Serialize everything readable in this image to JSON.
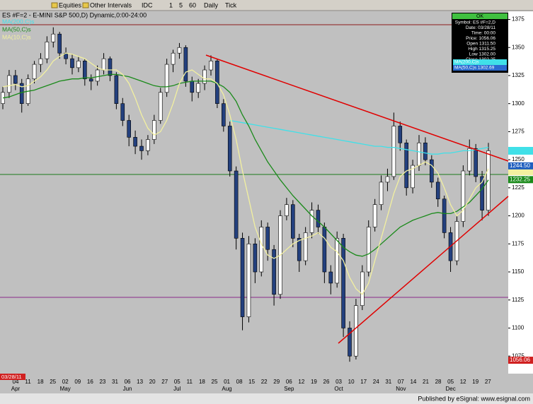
{
  "toolbar": {
    "items": [
      "Equities",
      "Other Intervals",
      "IDC",
      "1",
      "5",
      "60",
      "Daily",
      "Tick"
    ]
  },
  "status_bar": "Published by eSignal: www.esignal.com",
  "info_box": {
    "status": "OK",
    "rows": [
      "Symbol: ES #F=2,D",
      "Date: 03/28/11",
      "Time: 00:00",
      "Price: 1056.06",
      "Open 1311.50",
      "High 1315.25",
      "Low 1302.00",
      "Close 1302.25"
    ],
    "ma_rows": [
      "MA(200,C)s",
      "MA(50,C)s 1302.69"
    ]
  },
  "chart_data": {
    "type": "candlestick",
    "title": "ES #F=2 - E-MINI S&P 500,D) Dynamic,0:00-24:00",
    "ylim": [
      1060,
      1381
    ],
    "yticks": [
      1075,
      1100,
      1125,
      1150,
      1175,
      1200,
      1225,
      1250,
      1275,
      1300,
      1325,
      1350,
      1375
    ],
    "up_color": "#ffffff",
    "down_color": "#23407e",
    "week_labels": [
      "04",
      "11",
      "18",
      "25",
      "02",
      "09",
      "16",
      "23",
      "31",
      "06",
      "13",
      "20",
      "27",
      "05",
      "11",
      "18",
      "25",
      "01",
      "08",
      "15",
      "22",
      "29",
      "06",
      "12",
      "19",
      "26",
      "03",
      "10",
      "17",
      "24",
      "31",
      "07",
      "14",
      "21",
      "28",
      "05",
      "12",
      "19",
      "27"
    ],
    "month_labels": [
      "Apr",
      "May",
      "Jun",
      "Jul",
      "Aug",
      "Sep",
      "Oct",
      "Nov",
      "Dec"
    ],
    "start_date": "03/28/11",
    "price_labels": [
      {
        "value": 1244.5,
        "label": "1244.50",
        "color": "#1f5fbf"
      },
      {
        "value": 1232.25,
        "label": "1232.25",
        "color": "#1a8a1a"
      },
      {
        "value": 1056.06,
        "label": "1056.06",
        "color": "#d02020"
      }
    ],
    "candles": [
      [
        1300,
        1315,
        1295,
        1310
      ],
      [
        1310,
        1330,
        1305,
        1325
      ],
      [
        1325,
        1330,
        1312,
        1318
      ],
      [
        1318,
        1322,
        1292,
        1300
      ],
      [
        1300,
        1326,
        1298,
        1322
      ],
      [
        1322,
        1338,
        1318,
        1335
      ],
      [
        1335,
        1345,
        1328,
        1340
      ],
      [
        1340,
        1360,
        1336,
        1355
      ],
      [
        1355,
        1368,
        1350,
        1362
      ],
      [
        1362,
        1364,
        1340,
        1345
      ],
      [
        1345,
        1350,
        1335,
        1340
      ],
      [
        1340,
        1344,
        1326,
        1332
      ],
      [
        1332,
        1342,
        1328,
        1338
      ],
      [
        1338,
        1340,
        1316,
        1322
      ],
      [
        1322,
        1326,
        1312,
        1320
      ],
      [
        1320,
        1334,
        1316,
        1330
      ],
      [
        1330,
        1345,
        1326,
        1340
      ],
      [
        1340,
        1342,
        1320,
        1325
      ],
      [
        1325,
        1328,
        1295,
        1300
      ],
      [
        1300,
        1305,
        1280,
        1285
      ],
      [
        1285,
        1290,
        1262,
        1270
      ],
      [
        1270,
        1276,
        1255,
        1262
      ],
      [
        1262,
        1268,
        1250,
        1258
      ],
      [
        1258,
        1272,
        1254,
        1268
      ],
      [
        1268,
        1290,
        1264,
        1285
      ],
      [
        1285,
        1314,
        1282,
        1310
      ],
      [
        1310,
        1340,
        1306,
        1335
      ],
      [
        1335,
        1348,
        1328,
        1345
      ],
      [
        1345,
        1354,
        1340,
        1350
      ],
      [
        1350,
        1352,
        1315,
        1320
      ],
      [
        1320,
        1324,
        1302,
        1310
      ],
      [
        1310,
        1322,
        1305,
        1318
      ],
      [
        1318,
        1334,
        1312,
        1330
      ],
      [
        1330,
        1343,
        1325,
        1338
      ],
      [
        1338,
        1340,
        1296,
        1300
      ],
      [
        1300,
        1304,
        1275,
        1280
      ],
      [
        1280,
        1284,
        1235,
        1240
      ],
      [
        1240,
        1244,
        1170,
        1180
      ],
      [
        1180,
        1185,
        1098,
        1110
      ],
      [
        1110,
        1182,
        1105,
        1175
      ],
      [
        1175,
        1180,
        1140,
        1150
      ],
      [
        1150,
        1196,
        1146,
        1190
      ],
      [
        1190,
        1194,
        1160,
        1170
      ],
      [
        1170,
        1174,
        1120,
        1130
      ],
      [
        1130,
        1205,
        1126,
        1200
      ],
      [
        1200,
        1216,
        1196,
        1210
      ],
      [
        1210,
        1214,
        1172,
        1180
      ],
      [
        1180,
        1184,
        1150,
        1160
      ],
      [
        1160,
        1190,
        1156,
        1185
      ],
      [
        1185,
        1212,
        1180,
        1205
      ],
      [
        1205,
        1210,
        1184,
        1190
      ],
      [
        1190,
        1194,
        1140,
        1150
      ],
      [
        1150,
        1156,
        1130,
        1140
      ],
      [
        1140,
        1186,
        1136,
        1180
      ],
      [
        1180,
        1184,
        1092,
        1100
      ],
      [
        1100,
        1106,
        1070,
        1075
      ],
      [
        1075,
        1126,
        1072,
        1120
      ],
      [
        1120,
        1156,
        1116,
        1150
      ],
      [
        1150,
        1196,
        1146,
        1190
      ],
      [
        1190,
        1215,
        1186,
        1210
      ],
      [
        1210,
        1236,
        1205,
        1230
      ],
      [
        1230,
        1242,
        1222,
        1235
      ],
      [
        1235,
        1292,
        1232,
        1280
      ],
      [
        1280,
        1284,
        1258,
        1265
      ],
      [
        1265,
        1268,
        1218,
        1225
      ],
      [
        1225,
        1250,
        1220,
        1245
      ],
      [
        1245,
        1272,
        1240,
        1265
      ],
      [
        1265,
        1270,
        1245,
        1250
      ],
      [
        1250,
        1254,
        1225,
        1230
      ],
      [
        1230,
        1234,
        1208,
        1215
      ],
      [
        1215,
        1218,
        1180,
        1185
      ],
      [
        1185,
        1190,
        1150,
        1160
      ],
      [
        1160,
        1200,
        1156,
        1195
      ],
      [
        1195,
        1245,
        1190,
        1240
      ],
      [
        1240,
        1268,
        1236,
        1260
      ],
      [
        1260,
        1264,
        1230,
        1235
      ],
      [
        1235,
        1240,
        1196,
        1205
      ],
      [
        1205,
        1265,
        1200,
        1258
      ]
    ],
    "series": [
      {
        "name": "MA(200,C)s",
        "color": "#40e0e8",
        "values": [
          null,
          null,
          null,
          null,
          null,
          null,
          null,
          null,
          null,
          null,
          null,
          null,
          null,
          null,
          null,
          null,
          null,
          null,
          null,
          null,
          null,
          null,
          null,
          null,
          null,
          null,
          null,
          null,
          null,
          null,
          null,
          null,
          null,
          null,
          null,
          null,
          1285,
          1284,
          1283,
          1282,
          1281,
          1280,
          1279,
          1278,
          1277,
          1276,
          1275,
          1274,
          1273,
          1272,
          1271,
          1270,
          1269,
          1268,
          1267,
          1266,
          1265,
          1264,
          1263,
          1262,
          1262,
          1261,
          1261,
          1260,
          1259,
          1258,
          1257,
          1256,
          1255,
          1255,
          1256,
          1256,
          1257,
          1258,
          1258,
          1259,
          1260,
          1261
        ]
      },
      {
        "name": "MA(50,C)s",
        "color": "#1a8a1a",
        "values": [
          1305,
          1306,
          1308,
          1310,
          1311,
          1312,
          1314,
          1316,
          1318,
          1320,
          1321,
          1322,
          1322,
          1323,
          1323,
          1324,
          1325,
          1326,
          1326,
          1325,
          1324,
          1322,
          1320,
          1318,
          1316,
          1315,
          1315,
          1316,
          1318,
          1319,
          1320,
          1320,
          1320,
          1320,
          1318,
          1315,
          1310,
          1302,
          1290,
          1280,
          1268,
          1258,
          1248,
          1240,
          1232,
          1225,
          1218,
          1212,
          1206,
          1200,
          1195,
          1190,
          1184,
          1178,
          1172,
          1168,
          1165,
          1164,
          1166,
          1170,
          1175,
          1180,
          1185,
          1190,
          1193,
          1196,
          1198,
          1200,
          1202,
          1203,
          1202,
          1202,
          1204,
          1208,
          1212,
          1218,
          1224,
          1232
        ]
      },
      {
        "name": "MA(10,C)s",
        "color": "#f2f0a0",
        "values": [
          1315,
          1316,
          1317,
          1315,
          1316,
          1320,
          1324,
          1330,
          1338,
          1342,
          1345,
          1344,
          1342,
          1340,
          1336,
          1332,
          1330,
          1330,
          1330,
          1326,
          1318,
          1305,
          1290,
          1278,
          1272,
          1275,
          1285,
          1300,
          1318,
          1328,
          1330,
          1326,
          1322,
          1322,
          1318,
          1308,
          1290,
          1268,
          1240,
          1215,
          1190,
          1175,
          1165,
          1162,
          1165,
          1170,
          1175,
          1178,
          1180,
          1182,
          1185,
          1180,
          1172,
          1168,
          1160,
          1145,
          1135,
          1130,
          1140,
          1160,
          1180,
          1200,
          1220,
          1235,
          1240,
          1242,
          1245,
          1248,
          1245,
          1238,
          1225,
          1210,
          1200,
          1205,
          1215,
          1225,
          1230,
          1242
        ]
      }
    ]
  }
}
